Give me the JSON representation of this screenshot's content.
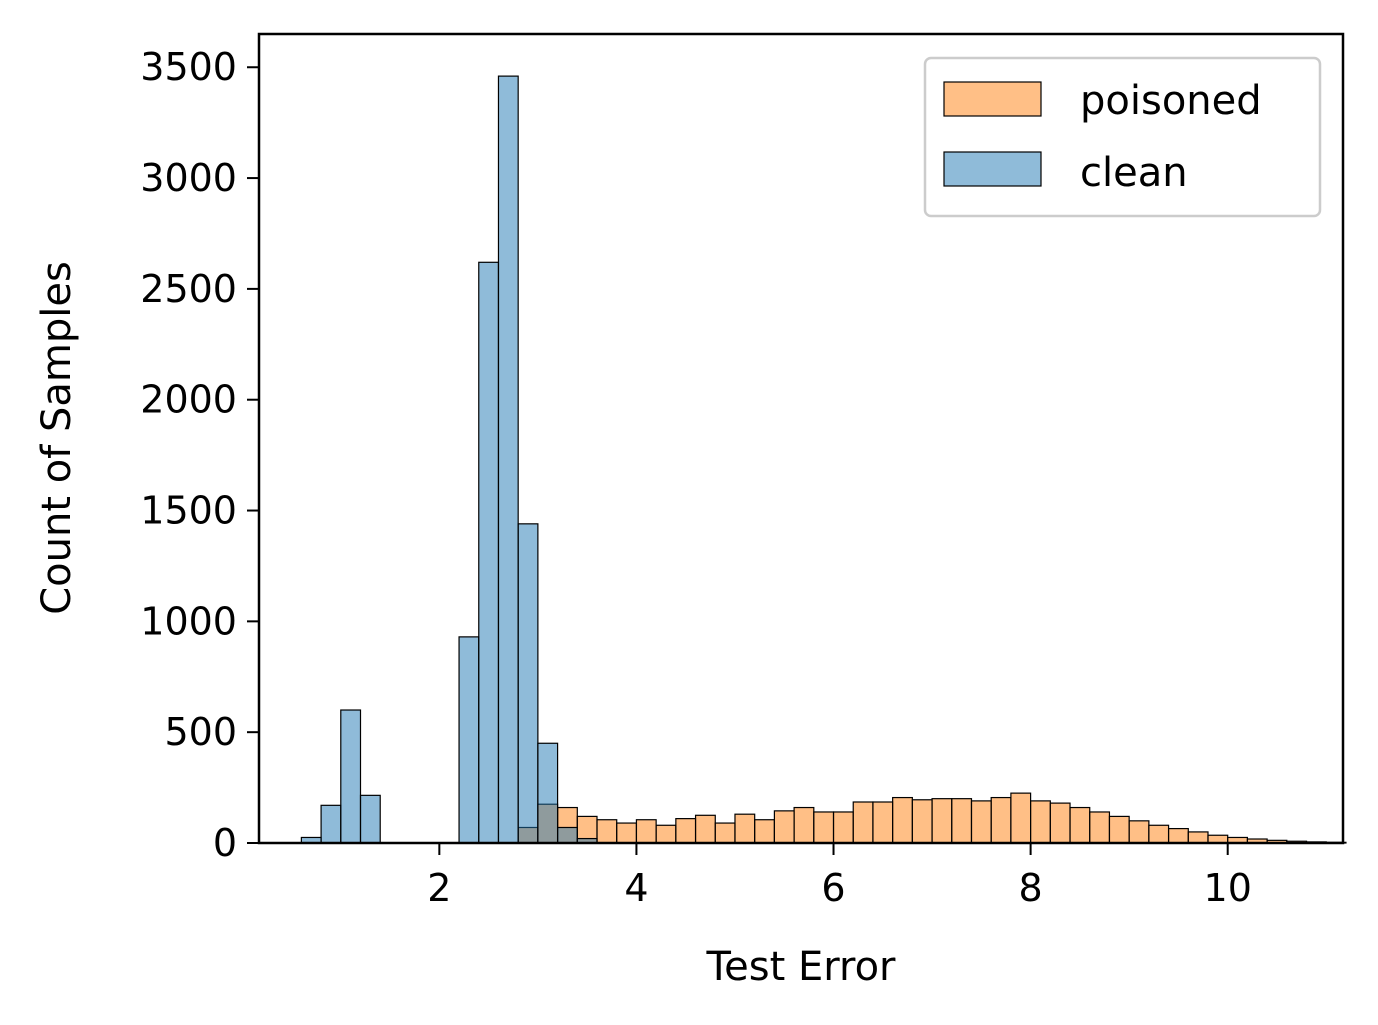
{
  "chart_data": {
    "type": "bar",
    "subtype": "histogram",
    "xlabel": "Test Error",
    "ylabel": "Count of Samples",
    "xlim": [
      0.17,
      11.17
    ],
    "ylim": [
      0,
      3650
    ],
    "xticks": [
      2,
      4,
      6,
      8,
      10
    ],
    "yticks": [
      0,
      500,
      1000,
      1500,
      2000,
      2500,
      3000,
      3500
    ],
    "legend_position": "top-right",
    "grid": false,
    "bin_width": 0.2,
    "series": [
      {
        "name": "poisoned",
        "color": "#ff7f0e",
        "bin_start": 2.8,
        "values": [
          70,
          175,
          160,
          120,
          105,
          90,
          105,
          80,
          110,
          125,
          90,
          130,
          105,
          145,
          160,
          140,
          140,
          185,
          185,
          205,
          195,
          200,
          200,
          190,
          205,
          225,
          190,
          180,
          160,
          140,
          120,
          100,
          80,
          65,
          50,
          35,
          25,
          18,
          12,
          8,
          5,
          3
        ]
      },
      {
        "name": "clean",
        "color": "#1f77b4",
        "bin_start": 0.6,
        "values": [
          25,
          170,
          600,
          215,
          0,
          0,
          0,
          0,
          930,
          2620,
          3460,
          1440,
          450,
          70,
          20
        ]
      }
    ]
  }
}
